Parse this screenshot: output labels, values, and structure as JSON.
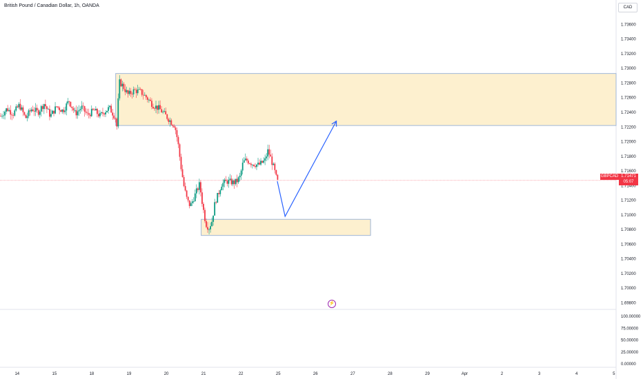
{
  "header": {
    "title": "British Pound / Canadian Dollar, 1h, OANDA",
    "currency_button": "CAD"
  },
  "price_tag": {
    "symbol": "GBPCAD",
    "price": "1.71471",
    "countdown": "05:07",
    "color": "#f23645"
  },
  "indicator_icon": "lightning-icon",
  "colors": {
    "up": "#089981",
    "down": "#f23645",
    "zone_fill": "#fdf0cf",
    "zone_border": "#9fb6d8",
    "arrow": "#2962ff"
  },
  "chart_data": [
    {
      "type": "candlestick",
      "symbol": "GBPCAD",
      "interval": "1h",
      "x_ticks": [
        "14",
        "15",
        "18",
        "19",
        "20",
        "21",
        "22",
        "25",
        "26",
        "27",
        "28",
        "29",
        "Apr",
        "2",
        "3",
        "4",
        "5"
      ],
      "y_ticks": [
        "1.73600",
        "1.73400",
        "1.73200",
        "1.73000",
        "1.72800",
        "1.72600",
        "1.72400",
        "1.72200",
        "1.72000",
        "1.71800",
        "1.71600",
        "1.71400",
        "1.71200",
        "1.71000",
        "1.70800",
        "1.70600",
        "1.70400",
        "1.70200",
        "1.70000",
        "1.69800"
      ],
      "ylim": [
        1.6972,
        1.7382
      ],
      "last_price": 1.71471,
      "price_path": [
        [
          0,
          1.7235
        ],
        [
          4,
          1.7245
        ],
        [
          8,
          1.7238
        ],
        [
          12,
          1.725
        ],
        [
          16,
          1.7232
        ],
        [
          20,
          1.7245
        ],
        [
          24,
          1.724
        ],
        [
          28,
          1.7252
        ],
        [
          32,
          1.7235
        ],
        [
          36,
          1.7248
        ],
        [
          40,
          1.7242
        ],
        [
          44,
          1.7256
        ],
        [
          48,
          1.7238
        ],
        [
          52,
          1.7247
        ],
        [
          56,
          1.7236
        ],
        [
          60,
          1.7243
        ],
        [
          64,
          1.7235
        ],
        [
          66,
          1.724
        ],
        [
          70,
          1.7246
        ],
        [
          74,
          1.7232
        ],
        [
          75,
          1.7216
        ],
        [
          76,
          1.7282
        ],
        [
          78,
          1.7278
        ],
        [
          82,
          1.7264
        ],
        [
          86,
          1.727
        ],
        [
          90,
          1.7268
        ],
        [
          94,
          1.726
        ],
        [
          98,
          1.725
        ],
        [
          102,
          1.7245
        ],
        [
          106,
          1.7236
        ],
        [
          110,
          1.7226
        ],
        [
          112,
          1.7222
        ],
        [
          114,
          1.72
        ],
        [
          116,
          1.7166
        ],
        [
          118,
          1.7138
        ],
        [
          120,
          1.712
        ],
        [
          122,
          1.7112
        ],
        [
          126,
          1.7132
        ],
        [
          128,
          1.7142
        ],
        [
          130,
          1.7112
        ],
        [
          132,
          1.7088
        ],
        [
          134,
          1.7082
        ],
        [
          136,
          1.7092
        ],
        [
          138,
          1.7118
        ],
        [
          140,
          1.7128
        ],
        [
          142,
          1.7142
        ],
        [
          146,
          1.7146
        ],
        [
          150,
          1.7144
        ],
        [
          152,
          1.7146
        ],
        [
          154,
          1.7152
        ],
        [
          156,
          1.7172
        ],
        [
          158,
          1.7175
        ],
        [
          162,
          1.717
        ],
        [
          166,
          1.7168
        ],
        [
          170,
          1.7174
        ],
        [
          172,
          1.7188
        ],
        [
          174,
          1.7176
        ],
        [
          176,
          1.7162
        ],
        [
          178,
          1.7145
        ],
        [
          179,
          1.7147
        ]
      ],
      "zones": [
        {
          "x_from": 74,
          "x_to": "right-edge",
          "y_from": 1.7222,
          "y_to": 1.7293
        },
        {
          "x_from": 129,
          "x_to": 238,
          "y_from": 1.7072,
          "y_to": 1.7094
        }
      ],
      "projection": [
        [
          178,
          1.7146
        ],
        [
          183,
          1.7098
        ],
        [
          216,
          1.7228
        ]
      ],
      "markers": {
        "bars_per_day": 24
      }
    },
    {
      "type": "line",
      "series_label": "",
      "y_ticks": [
        "100.00000",
        "75.00000",
        "50.00000",
        "25.00000",
        "0.00000"
      ],
      "ylim": [
        0,
        100
      ]
    }
  ]
}
